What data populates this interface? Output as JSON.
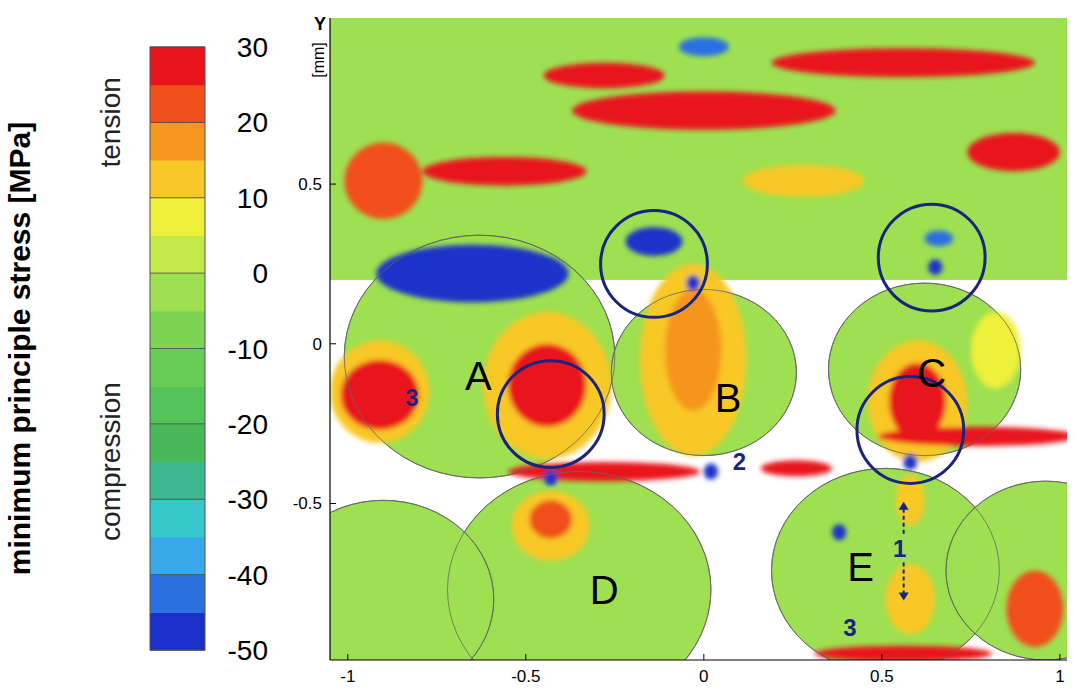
{
  "chart_data": {
    "type": "contour",
    "y_label": "Y",
    "y_label_unit": "[mm]",
    "xlim": [
      -1.05,
      1.02
    ],
    "ylim": [
      -0.99,
      1.02
    ],
    "xticks": [
      -1,
      -0.5,
      0,
      0.5,
      1
    ],
    "yticks": [
      -0.5,
      0,
      0.5
    ],
    "grid": false,
    "colorbar": {
      "label": "minimum principle stress [MPa]",
      "tension": "tension",
      "compression": "compression",
      "range": [
        -50,
        30
      ],
      "ticks": [
        30,
        20,
        10,
        0,
        -10,
        -20,
        -30,
        -40,
        -50
      ]
    },
    "bands": [
      {
        "x0": -1.05,
        "x1": 1.02,
        "y0": 0.2,
        "y1": 1.02,
        "value": -5
      }
    ],
    "grains": [
      {
        "x": -0.63,
        "y": -0.04,
        "r": 0.38,
        "value": -5
      },
      {
        "x": 0,
        "y": -0.09,
        "r": 0.26,
        "value": -5
      },
      {
        "x": 0.62,
        "y": -0.08,
        "r": 0.27,
        "value": -5
      },
      {
        "x": -0.35,
        "y": -0.77,
        "r": 0.37,
        "value": -5
      },
      {
        "x": 0.51,
        "y": -0.71,
        "r": 0.32,
        "value": -5
      },
      {
        "x": -0.9,
        "y": -0.8,
        "r": 0.31,
        "value": -5
      },
      {
        "x": 0.96,
        "y": -0.71,
        "r": 0.28,
        "value": -5
      }
    ],
    "fields": [
      {
        "x": 0,
        "y": 0.73,
        "rx": 0.37,
        "ry": 0.06,
        "value": 30
      },
      {
        "x": 0.56,
        "y": 0.88,
        "rx": 0.37,
        "ry": 0.045,
        "value": 30
      },
      {
        "x": -0.56,
        "y": 0.54,
        "rx": 0.23,
        "ry": 0.045,
        "value": 30
      },
      {
        "x": -0.28,
        "y": 0.84,
        "rx": 0.17,
        "ry": 0.04,
        "value": 30
      },
      {
        "x": 0.87,
        "y": 0.6,
        "rx": 0.13,
        "ry": 0.06,
        "value": 25
      },
      {
        "x": -0.9,
        "y": 0.51,
        "rx": 0.11,
        "ry": 0.12,
        "value": 20
      },
      {
        "x": 0.28,
        "y": 0.51,
        "rx": 0.17,
        "ry": 0.05,
        "value": 12
      },
      {
        "x": -0.65,
        "y": 0.22,
        "rx": 0.27,
        "ry": 0.09,
        "value": -50
      },
      {
        "x": -0.14,
        "y": 0.32,
        "rx": 0.08,
        "ry": 0.045,
        "value": -50
      },
      {
        "x": 0,
        "y": 0.93,
        "rx": 0.07,
        "ry": 0.03,
        "value": -45
      },
      {
        "x": 0.66,
        "y": 0.33,
        "rx": 0.04,
        "ry": 0.025,
        "value": -45
      },
      {
        "x": -0.44,
        "y": -0.13,
        "rx": 0.18,
        "ry": 0.23,
        "value": 12
      },
      {
        "x": -0.44,
        "y": -0.13,
        "rx": 0.11,
        "ry": 0.13,
        "value": 25
      },
      {
        "x": -0.91,
        "y": -0.15,
        "rx": 0.14,
        "ry": 0.16,
        "value": 12
      },
      {
        "x": -0.91,
        "y": -0.16,
        "rx": 0.11,
        "ry": 0.11,
        "value": 28
      },
      {
        "x": -0.03,
        "y": -0.05,
        "rx": 0.15,
        "ry": 0.3,
        "value": 10
      },
      {
        "x": -0.03,
        "y": -0.02,
        "rx": 0.08,
        "ry": 0.19,
        "value": 18
      },
      {
        "x": 0.6,
        "y": -0.18,
        "rx": 0.14,
        "ry": 0.19,
        "value": 12
      },
      {
        "x": 0.6,
        "y": -0.18,
        "rx": 0.08,
        "ry": 0.12,
        "value": 27
      },
      {
        "x": 0.82,
        "y": -0.02,
        "rx": 0.07,
        "ry": 0.12,
        "value": 8
      },
      {
        "x": -0.43,
        "y": -0.57,
        "rx": 0.11,
        "ry": 0.11,
        "value": 10
      },
      {
        "x": -0.43,
        "y": -0.55,
        "rx": 0.06,
        "ry": 0.06,
        "value": 20
      },
      {
        "x": 0.58,
        "y": -0.8,
        "rx": 0.07,
        "ry": 0.11,
        "value": 12
      },
      {
        "x": 0.58,
        "y": -0.49,
        "rx": 0.04,
        "ry": 0.08,
        "value": 10
      },
      {
        "x": 0.93,
        "y": -0.83,
        "rx": 0.08,
        "ry": 0.12,
        "value": 20
      },
      {
        "x": -0.28,
        "y": -0.4,
        "rx": 0.27,
        "ry": 0.03,
        "value": 30
      },
      {
        "x": 0.26,
        "y": -0.39,
        "rx": 0.1,
        "ry": 0.025,
        "value": 30
      },
      {
        "x": 0.77,
        "y": -0.29,
        "rx": 0.28,
        "ry": 0.03,
        "value": 30
      },
      {
        "x": 0.56,
        "y": -0.97,
        "rx": 0.25,
        "ry": 0.025,
        "value": 30
      },
      {
        "x": -0.43,
        "y": -0.42,
        "rx": 0.02,
        "ry": 0.025,
        "value": -50
      },
      {
        "x": 0.58,
        "y": -0.37,
        "rx": 0.02,
        "ry": 0.025,
        "value": -50
      },
      {
        "x": -0.03,
        "y": 0.19,
        "rx": 0.02,
        "ry": 0.025,
        "value": -50
      },
      {
        "x": 0.65,
        "y": 0.24,
        "rx": 0.02,
        "ry": 0.025,
        "value": -50
      },
      {
        "x": 0.02,
        "y": -0.4,
        "rx": 0.02,
        "ry": 0.025,
        "value": -50
      },
      {
        "x": 0.38,
        "y": -0.59,
        "rx": 0.02,
        "ry": 0.025,
        "value": -50
      }
    ],
    "highlights": [
      {
        "x": -0.14,
        "y": 0.25,
        "r": 0.15
      },
      {
        "x": 0.64,
        "y": 0.27,
        "r": 0.15
      },
      {
        "x": -0.43,
        "y": -0.22,
        "r": 0.15
      },
      {
        "x": 0.58,
        "y": -0.27,
        "r": 0.15
      }
    ],
    "annotations": [
      {
        "text": "A",
        "x": -0.633,
        "y": -0.1,
        "color": "#000000"
      },
      {
        "text": "B",
        "x": 0.068,
        "y": -0.17,
        "color": "#000000"
      },
      {
        "text": "C",
        "x": 0.64,
        "y": -0.09,
        "color": "#000000"
      },
      {
        "text": "D",
        "x": -0.28,
        "y": -0.77,
        "color": "#000000"
      },
      {
        "text": "E",
        "x": 0.44,
        "y": -0.7,
        "color": "#000000"
      },
      {
        "text": "3",
        "x": -0.82,
        "y": -0.17,
        "color": "#1a237e"
      },
      {
        "text": "2",
        "x": 0.1,
        "y": -0.37,
        "color": "#1a237e"
      },
      {
        "text": "1",
        "x": 0.55,
        "y": -0.64,
        "color": "#1a237e",
        "marker": "double-arrow"
      },
      {
        "text": "3",
        "x": 0.41,
        "y": -0.89,
        "color": "#1a237e"
      }
    ]
  }
}
